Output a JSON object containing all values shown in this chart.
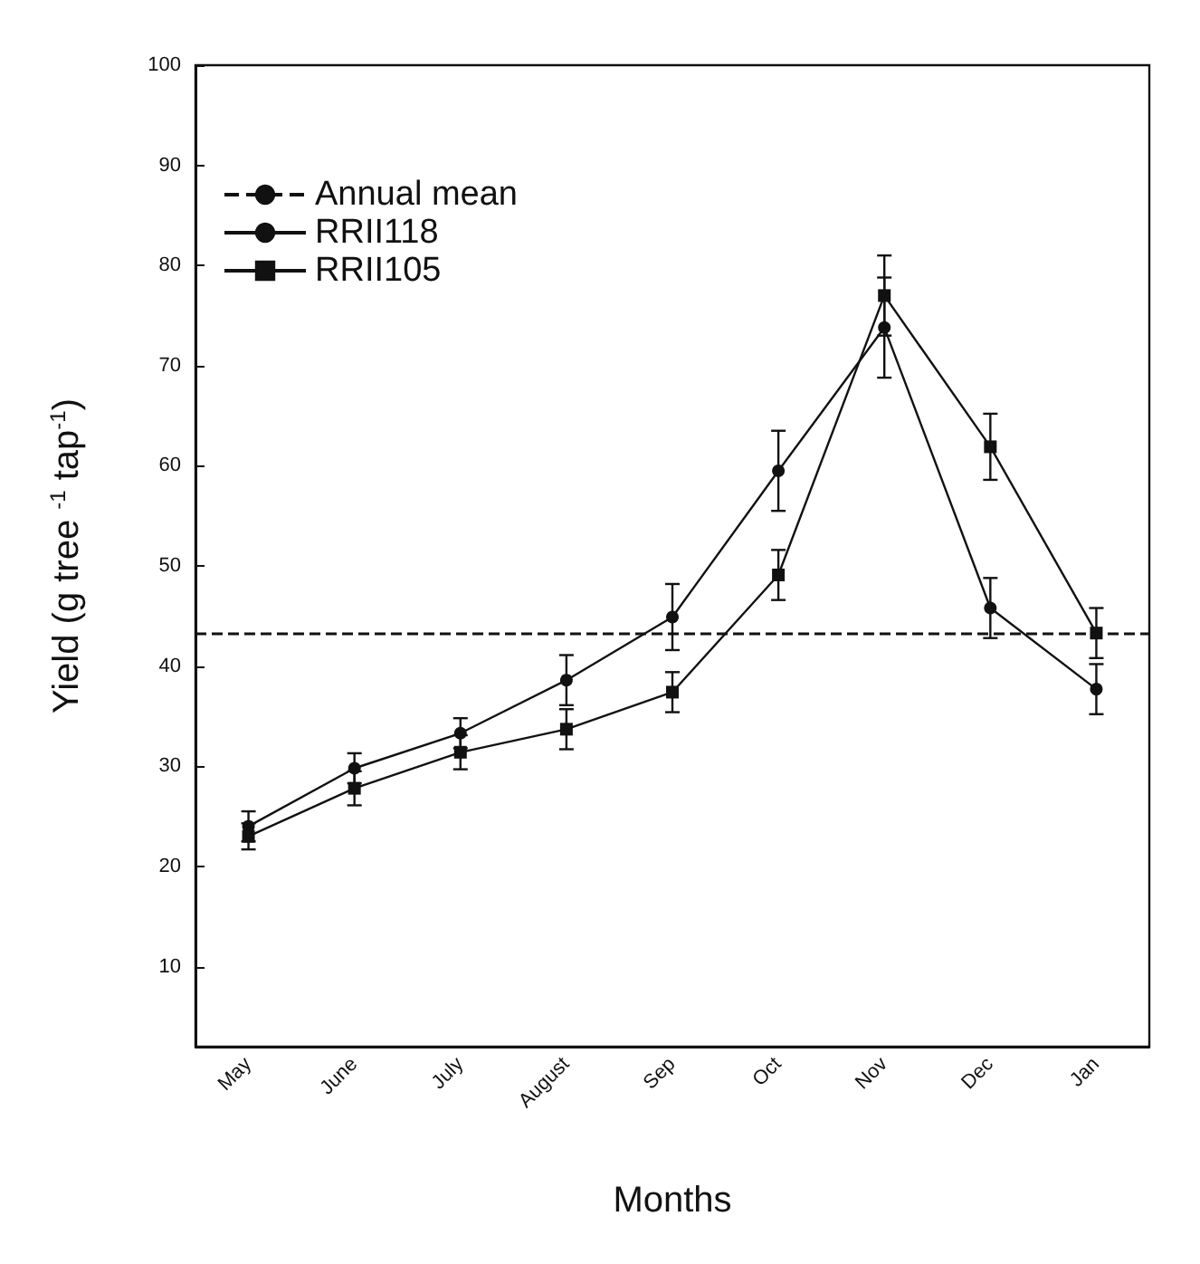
{
  "chart_data": {
    "type": "line",
    "xlabel": "Months",
    "ylabel": "Yield (g tree $^{-1}$ tap$^{-1}$)",
    "categories": [
      "May",
      "June",
      "July",
      "August",
      "Sep",
      "Oct",
      "Nov",
      "Dec",
      "Jan"
    ],
    "series": [
      {
        "name": "RRII118",
        "color": "#111111",
        "marker": "circle",
        "values": [
          24,
          29.8,
          33.3,
          38.6,
          44.9,
          59.5,
          73.8,
          45.8,
          37.7
        ],
        "errors": [
          1.5,
          1.5,
          1.5,
          2.5,
          3.3,
          4,
          5,
          3,
          2.5
        ]
      },
      {
        "name": "RRII105",
        "color": "#111111",
        "marker": "square",
        "values": [
          23,
          27.8,
          31.4,
          33.7,
          37.4,
          49.1,
          77,
          61.9,
          43.3
        ],
        "errors": [
          1.3,
          1.7,
          1.7,
          2,
          2,
          2.5,
          4,
          3.3,
          2.5
        ]
      }
    ],
    "ref_lines": [
      {
        "axis": "y",
        "value": 43.3,
        "label": "Annual mean",
        "color": "#111111",
        "line_style": "dashed"
      }
    ],
    "ylim": [
      2,
      100
    ],
    "yticks": [
      10,
      20,
      30,
      40,
      50,
      60,
      70,
      80,
      90,
      100
    ],
    "grid": false,
    "legend": "top left",
    "line_style": "solid"
  }
}
